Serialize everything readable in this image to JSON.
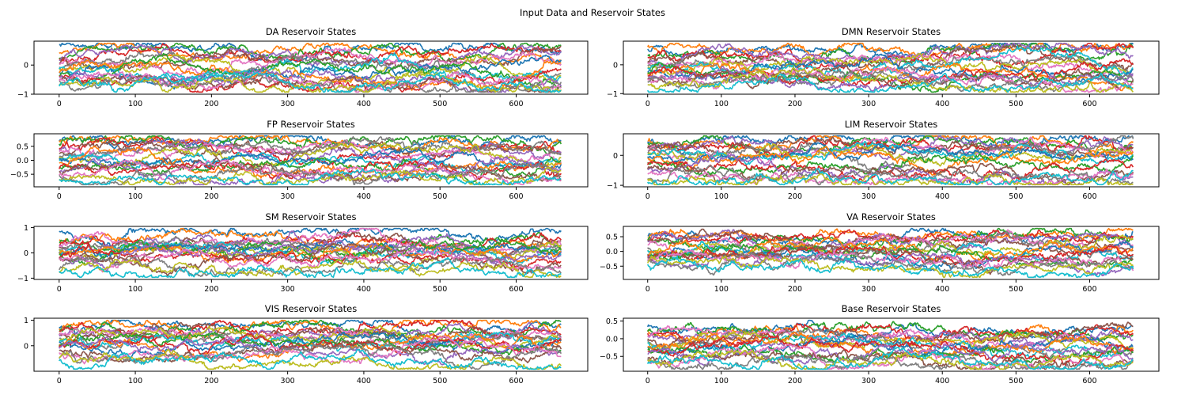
{
  "figure": {
    "suptitle": "Input Data and Reservoir States"
  },
  "colors": [
    "#1f77b4",
    "#ff7f0e",
    "#2ca02c",
    "#d62728",
    "#9467bd",
    "#8c564b",
    "#e377c2",
    "#7f7f7f",
    "#bcbd22",
    "#17becf"
  ],
  "chart_data": [
    {
      "type": "line",
      "title": "DA Reservoir States",
      "xlabel": "",
      "ylabel": "",
      "xlim": [
        -33,
        694
      ],
      "ylim": [
        -1.0,
        0.82
      ],
      "xticks": [
        0,
        100,
        200,
        300,
        400,
        500,
        600
      ],
      "yticks": [
        {
          "v": 0,
          "label": "0"
        },
        {
          "v": -1,
          "label": "−1"
        }
      ],
      "n_points": 660,
      "grid": false,
      "legend": "none",
      "series": [
        {
          "s": 0.7,
          "e": 0.62
        },
        {
          "s": 0.45,
          "e": 0.7
        },
        {
          "s": 0.3,
          "e": 0.55
        },
        {
          "s": 0.25,
          "e": 0.5
        },
        {
          "s": 0.2,
          "e": 0.4
        },
        {
          "s": 0.1,
          "e": 0.2
        },
        {
          "s": 0.05,
          "e": 0.3
        },
        {
          "s": -0.05,
          "e": 0.1
        },
        {
          "s": -0.1,
          "e": -0.05
        },
        {
          "s": -0.15,
          "e": -0.2
        },
        {
          "s": -0.2,
          "e": -0.3
        },
        {
          "s": -0.25,
          "e": -0.4
        },
        {
          "s": -0.3,
          "e": -0.5
        },
        {
          "s": -0.35,
          "e": -0.55
        },
        {
          "s": -0.4,
          "e": -0.6
        },
        {
          "s": -0.45,
          "e": -0.7
        },
        {
          "s": -0.5,
          "e": -0.75
        },
        {
          "s": -0.55,
          "e": -0.85
        },
        {
          "s": -0.6,
          "e": -0.9
        },
        {
          "s": -0.65,
          "e": -0.92
        }
      ]
    },
    {
      "type": "line",
      "title": "DMN Reservoir States",
      "xlabel": "",
      "ylabel": "",
      "xlim": [
        -33,
        694
      ],
      "ylim": [
        -1.02,
        0.82
      ],
      "xticks": [
        0,
        100,
        200,
        300,
        400,
        500,
        600
      ],
      "yticks": [
        {
          "v": 0,
          "label": "0"
        },
        {
          "v": -1,
          "label": "−1"
        }
      ],
      "n_points": 660,
      "grid": false,
      "legend": "none",
      "series": [
        {
          "s": 0.5,
          "e": 0.75
        },
        {
          "s": 0.6,
          "e": 0.72
        },
        {
          "s": 0.35,
          "e": 0.55
        },
        {
          "s": 0.25,
          "e": 0.45
        },
        {
          "s": 0.15,
          "e": 0.35
        },
        {
          "s": 0.1,
          "e": 0.2
        },
        {
          "s": 0.05,
          "e": 0.1
        },
        {
          "s": -0.05,
          "e": 0.0
        },
        {
          "s": -0.1,
          "e": -0.1
        },
        {
          "s": -0.2,
          "e": -0.2
        },
        {
          "s": -0.25,
          "e": -0.3
        },
        {
          "s": -0.3,
          "e": -0.35
        },
        {
          "s": -0.35,
          "e": -0.4
        },
        {
          "s": -0.4,
          "e": -0.45
        },
        {
          "s": -0.45,
          "e": -0.5
        },
        {
          "s": -0.5,
          "e": -0.55
        },
        {
          "s": -0.55,
          "e": -0.6
        },
        {
          "s": -0.6,
          "e": -0.65
        },
        {
          "s": -0.7,
          "e": -0.7
        },
        {
          "s": -0.9,
          "e": -0.92
        }
      ]
    },
    {
      "type": "line",
      "title": "FP Reservoir States",
      "xlabel": "",
      "ylabel": "",
      "xlim": [
        -33,
        694
      ],
      "ylim": [
        -0.95,
        0.95
      ],
      "xticks": [
        0,
        100,
        200,
        300,
        400,
        500,
        600
      ],
      "yticks": [
        {
          "v": 0.5,
          "label": "0.5"
        },
        {
          "v": 0.0,
          "label": "0.0"
        },
        {
          "v": -0.5,
          "label": "−0.5"
        }
      ],
      "n_points": 660,
      "grid": false,
      "legend": "none",
      "series": [
        {
          "s": 0.7,
          "e": 0.8
        },
        {
          "s": 0.65,
          "e": 0.7
        },
        {
          "s": 0.55,
          "e": 0.6
        },
        {
          "s": 0.45,
          "e": 0.55
        },
        {
          "s": 0.4,
          "e": 0.45
        },
        {
          "s": 0.3,
          "e": 0.35
        },
        {
          "s": 0.25,
          "e": 0.3
        },
        {
          "s": 0.15,
          "e": 0.2
        },
        {
          "s": 0.05,
          "e": 0.1
        },
        {
          "s": 0.0,
          "e": 0.0
        },
        {
          "s": -0.05,
          "e": -0.05
        },
        {
          "s": -0.1,
          "e": -0.1
        },
        {
          "s": -0.2,
          "e": -0.2
        },
        {
          "s": -0.25,
          "e": -0.3
        },
        {
          "s": -0.35,
          "e": -0.35
        },
        {
          "s": -0.4,
          "e": -0.45
        },
        {
          "s": -0.5,
          "e": -0.55
        },
        {
          "s": -0.55,
          "e": -0.6
        },
        {
          "s": -0.65,
          "e": -0.7
        },
        {
          "s": -0.75,
          "e": -0.78
        }
      ]
    },
    {
      "type": "line",
      "title": "LIM Reservoir States",
      "xlabel": "",
      "ylabel": "",
      "xlim": [
        -33,
        694
      ],
      "ylim": [
        -1.05,
        0.72
      ],
      "xticks": [
        0,
        100,
        200,
        300,
        400,
        500,
        600
      ],
      "yticks": [
        {
          "v": 0,
          "label": "0"
        },
        {
          "v": -1,
          "label": "−1"
        }
      ],
      "n_points": 660,
      "grid": false,
      "legend": "none",
      "series": [
        {
          "s": 0.45,
          "e": 0.55
        },
        {
          "s": 0.4,
          "e": 0.5
        },
        {
          "s": 0.35,
          "e": 0.45
        },
        {
          "s": 0.3,
          "e": 0.4
        },
        {
          "s": 0.25,
          "e": 0.35
        },
        {
          "s": 0.2,
          "e": 0.3
        },
        {
          "s": 0.15,
          "e": 0.2
        },
        {
          "s": 0.1,
          "e": 0.1
        },
        {
          "s": 0.05,
          "e": 0.0
        },
        {
          "s": 0.0,
          "e": -0.05
        },
        {
          "s": -0.05,
          "e": -0.1
        },
        {
          "s": -0.1,
          "e": -0.2
        },
        {
          "s": -0.2,
          "e": -0.3
        },
        {
          "s": -0.3,
          "e": -0.4
        },
        {
          "s": -0.4,
          "e": -0.5
        },
        {
          "s": -0.5,
          "e": -0.6
        },
        {
          "s": -0.6,
          "e": -0.85
        },
        {
          "s": -0.7,
          "e": -0.88
        },
        {
          "s": -0.8,
          "e": -0.9
        },
        {
          "s": -0.9,
          "e": -0.95
        }
      ]
    },
    {
      "type": "line",
      "title": "SM Reservoir States",
      "xlabel": "",
      "ylabel": "",
      "xlim": [
        -33,
        694
      ],
      "ylim": [
        -1.05,
        1.05
      ],
      "xticks": [
        0,
        100,
        200,
        300,
        400,
        500,
        600
      ],
      "yticks": [
        {
          "v": 1,
          "label": "1"
        },
        {
          "v": 0,
          "label": "0"
        },
        {
          "v": -1,
          "label": "−1"
        }
      ],
      "n_points": 660,
      "grid": false,
      "legend": "none",
      "series": [
        {
          "s": 0.85,
          "e": 0.9
        },
        {
          "s": 0.5,
          "e": 0.55
        },
        {
          "s": 0.45,
          "e": 0.45
        },
        {
          "s": 0.35,
          "e": 0.4
        },
        {
          "s": 0.3,
          "e": 0.35
        },
        {
          "s": 0.25,
          "e": 0.3
        },
        {
          "s": 0.2,
          "e": 0.25
        },
        {
          "s": 0.15,
          "e": 0.2
        },
        {
          "s": 0.1,
          "e": 0.15
        },
        {
          "s": 0.05,
          "e": 0.1
        },
        {
          "s": 0.0,
          "e": 0.05
        },
        {
          "s": -0.05,
          "e": 0.0
        },
        {
          "s": -0.1,
          "e": -0.05
        },
        {
          "s": -0.15,
          "e": -0.1
        },
        {
          "s": -0.2,
          "e": -0.15
        },
        {
          "s": -0.25,
          "e": -0.25
        },
        {
          "s": -0.3,
          "e": -0.35
        },
        {
          "s": -0.6,
          "e": -0.6
        },
        {
          "s": -0.7,
          "e": -0.75
        },
        {
          "s": -0.8,
          "e": -0.85
        }
      ]
    },
    {
      "type": "line",
      "title": "VA Reservoir States",
      "xlabel": "",
      "ylabel": "",
      "xlim": [
        -33,
        694
      ],
      "ylim": [
        -0.95,
        0.85
      ],
      "xticks": [
        0,
        100,
        200,
        300,
        400,
        500,
        600
      ],
      "yticks": [
        {
          "v": 0.5,
          "label": "0.5"
        },
        {
          "v": 0.0,
          "label": "0.0"
        },
        {
          "v": -0.5,
          "label": "−0.5"
        }
      ],
      "n_points": 660,
      "grid": false,
      "legend": "none",
      "series": [
        {
          "s": 0.55,
          "e": 0.6
        },
        {
          "s": 0.5,
          "e": 0.55
        },
        {
          "s": 0.45,
          "e": 0.5
        },
        {
          "s": 0.4,
          "e": 0.45
        },
        {
          "s": 0.35,
          "e": 0.4
        },
        {
          "s": 0.3,
          "e": 0.35
        },
        {
          "s": 0.2,
          "e": 0.25
        },
        {
          "s": 0.15,
          "e": 0.2
        },
        {
          "s": 0.1,
          "e": 0.15
        },
        {
          "s": 0.05,
          "e": 0.05
        },
        {
          "s": 0.0,
          "e": 0.0
        },
        {
          "s": -0.05,
          "e": -0.05
        },
        {
          "s": -0.1,
          "e": -0.1
        },
        {
          "s": -0.15,
          "e": -0.15
        },
        {
          "s": -0.2,
          "e": -0.2
        },
        {
          "s": -0.25,
          "e": -0.3
        },
        {
          "s": -0.3,
          "e": -0.35
        },
        {
          "s": -0.35,
          "e": -0.45
        },
        {
          "s": -0.4,
          "e": -0.55
        },
        {
          "s": -0.45,
          "e": -0.8
        }
      ]
    },
    {
      "type": "line",
      "title": "VIS Reservoir States",
      "xlabel": "",
      "ylabel": "",
      "xlim": [
        -33,
        694
      ],
      "ylim": [
        -1.0,
        1.08
      ],
      "xticks": [
        0,
        100,
        200,
        300,
        400,
        500,
        600
      ],
      "yticks": [
        {
          "v": 1,
          "label": "1"
        },
        {
          "v": 0,
          "label": "0"
        }
      ],
      "n_points": 660,
      "grid": false,
      "legend": "none",
      "series": [
        {
          "s": 0.75,
          "e": 0.9
        },
        {
          "s": 0.7,
          "e": 0.85
        },
        {
          "s": 0.6,
          "e": 0.8
        },
        {
          "s": 0.55,
          "e": 0.7
        },
        {
          "s": 0.5,
          "e": 0.6
        },
        {
          "s": 0.45,
          "e": 0.55
        },
        {
          "s": 0.4,
          "e": 0.45
        },
        {
          "s": 0.3,
          "e": 0.35
        },
        {
          "s": 0.25,
          "e": 0.3
        },
        {
          "s": 0.2,
          "e": 0.25
        },
        {
          "s": 0.1,
          "e": 0.15
        },
        {
          "s": 0.05,
          "e": 0.1
        },
        {
          "s": 0.0,
          "e": 0.0
        },
        {
          "s": -0.05,
          "e": -0.05
        },
        {
          "s": -0.1,
          "e": -0.15
        },
        {
          "s": -0.2,
          "e": -0.25
        },
        {
          "s": -0.25,
          "e": -0.35
        },
        {
          "s": -0.35,
          "e": -0.5
        },
        {
          "s": -0.45,
          "e": -0.65
        },
        {
          "s": -0.55,
          "e": -0.75
        }
      ]
    },
    {
      "type": "line",
      "title": "Base Reservoir States",
      "xlabel": "",
      "ylabel": "",
      "xlim": [
        -33,
        694
      ],
      "ylim": [
        -0.92,
        0.58
      ],
      "xticks": [
        0,
        100,
        200,
        300,
        400,
        500,
        600
      ],
      "yticks": [
        {
          "v": 0.5,
          "label": "0.5"
        },
        {
          "v": 0.0,
          "label": "0.0"
        },
        {
          "v": -0.5,
          "label": "−0.5"
        }
      ],
      "n_points": 660,
      "grid": false,
      "legend": "none",
      "series": [
        {
          "s": 0.3,
          "e": 0.3
        },
        {
          "s": 0.25,
          "e": 0.25
        },
        {
          "s": 0.2,
          "e": 0.2
        },
        {
          "s": 0.15,
          "e": 0.15
        },
        {
          "s": 0.1,
          "e": 0.1
        },
        {
          "s": 0.05,
          "e": 0.05
        },
        {
          "s": 0.0,
          "e": 0.0
        },
        {
          "s": -0.05,
          "e": -0.05
        },
        {
          "s": -0.1,
          "e": -0.1
        },
        {
          "s": -0.15,
          "e": -0.15
        },
        {
          "s": -0.2,
          "e": -0.2
        },
        {
          "s": -0.25,
          "e": -0.25
        },
        {
          "s": -0.3,
          "e": -0.3
        },
        {
          "s": -0.35,
          "e": -0.4
        },
        {
          "s": -0.45,
          "e": -0.5
        },
        {
          "s": -0.5,
          "e": -0.55
        },
        {
          "s": -0.55,
          "e": -0.6
        },
        {
          "s": -0.6,
          "e": -0.7
        },
        {
          "s": -0.65,
          "e": -0.75
        },
        {
          "s": -0.7,
          "e": -0.82
        }
      ]
    }
  ]
}
